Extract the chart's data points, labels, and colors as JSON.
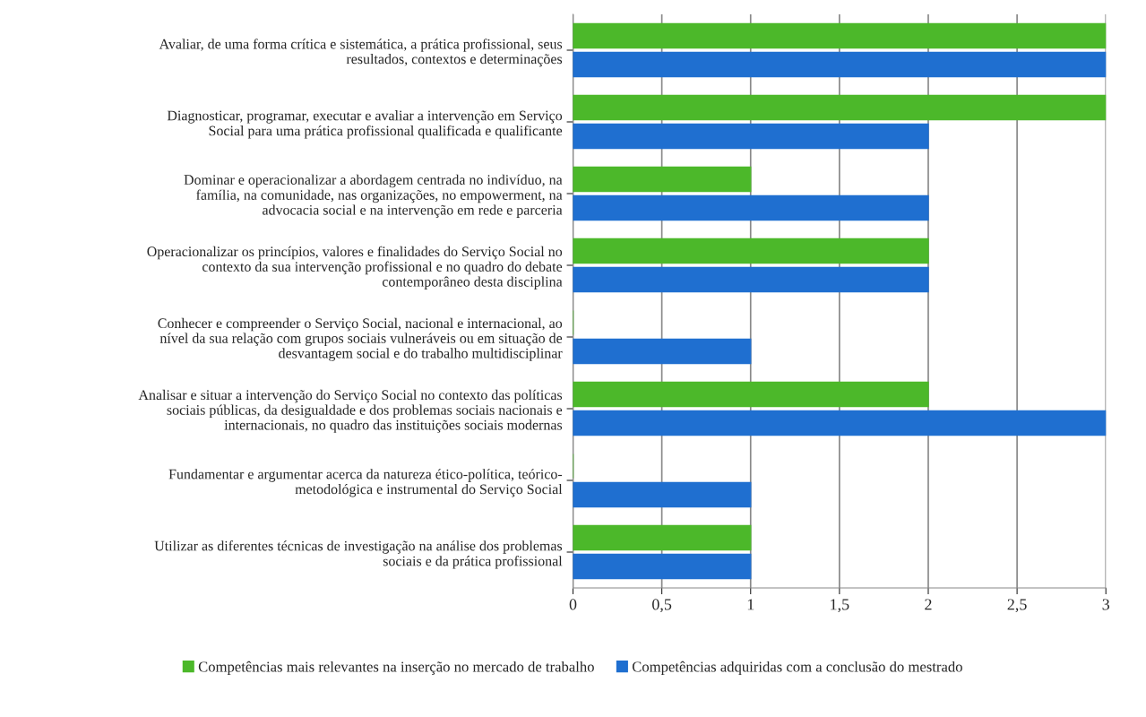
{
  "chart_data": {
    "type": "bar",
    "orientation": "horizontal",
    "categories": [
      "Avaliar, de uma forma crítica e sistemática, a prática profissional, seus\nresultados, contextos e determinações",
      "Diagnosticar, programar, executar e avaliar a intervenção em Serviço\nSocial para uma prática profissional qualificada e qualificante",
      "Dominar e operacionalizar a abordagem centrada no indivíduo, na\nfamília, na comunidade, nas organizações, no empowerment, na\nadvocacia social e na intervenção em rede e parceria",
      "Operacionalizar os princípios, valores e finalidades do Serviço Social no\ncontexto da sua intervenção profissional e no quadro do debate\ncontemporâneo desta disciplina",
      "Conhecer e compreender o Serviço Social, nacional e internacional, ao\nnível da sua relação com grupos sociais vulneráveis ou em situação de\ndesvantagem social e do trabalho multidisciplinar",
      "Analisar e situar a intervenção do Serviço Social no contexto das políticas\nsociais públicas, da desigualdade e dos problemas sociais nacionais e\ninternacionais, no quadro das instituições sociais modernas",
      "Fundamentar e argumentar acerca da natureza ético-política, teórico-\nmetodológica e instrumental do Serviço Social",
      "Utilizar as diferentes técnicas de investigação na análise dos problemas\nsociais e da prática profissional"
    ],
    "series": [
      {
        "name": "Competências mais relevantes na inserção no mercado de trabalho",
        "color": "#4cb82a",
        "values": [
          3,
          3,
          1,
          2,
          0,
          2,
          0,
          1
        ]
      },
      {
        "name": "Competências adquiridas com a conclusão do mestrado",
        "color": "#1f6fd0",
        "values": [
          3,
          2,
          2,
          2,
          1,
          3,
          1,
          1
        ]
      }
    ],
    "xlim": [
      0,
      3
    ],
    "xticks": [
      0,
      {
        "value": 0.5,
        "label": "0,5"
      },
      1,
      {
        "value": 1.5,
        "label": "1,5"
      },
      2,
      {
        "value": 2.5,
        "label": "2,5"
      },
      3
    ],
    "grid": "x",
    "legend": "bottom"
  }
}
